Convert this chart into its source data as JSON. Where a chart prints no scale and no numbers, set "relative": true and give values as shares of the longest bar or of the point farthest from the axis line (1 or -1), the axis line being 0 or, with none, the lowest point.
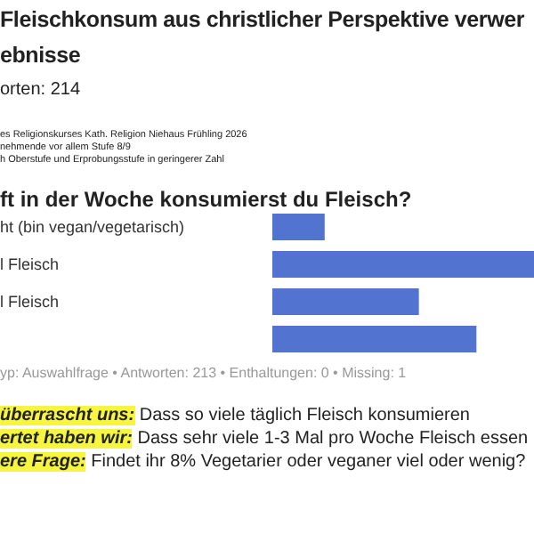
{
  "chart_data": {
    "type": "bar",
    "orientation": "horizontal",
    "relative": true,
    "title": "Fleischkonsum aus christlicher Perspektive verwer\nebnisse",
    "subtitle": "orten: 214",
    "annotations": [
      "es Religionskurses Kath. Religion Niehaus Frühling 2026",
      "nehmende vor allem Stufe 8/9",
      "h Oberstufe und Erprobungsstufe in geringerer Zahl",
      "ft in der Woche konsumierst du Fleisch?",
      "yp: Auswahlfrage • Antworten: 213 • Enthaltungen: 0 • Missing: 1",
      "überrascht uns: Dass so viele täglich Fleisch konsumieren",
      "ertet haben wir: Dass sehr viele 1-3 Mal pro Woche Fleisch essen",
      "ere Frage: Findet ihr 8% Vegetarier oder veganer viel oder wenig?"
    ],
    "categories": [
      "ht (bin vegan/vegetarisch)",
      "l Fleisch",
      "l Fleisch",
      null
    ],
    "values": [
      0.2,
      1,
      0.56,
      0.78
    ],
    "color": "#5273cf"
  }
}
